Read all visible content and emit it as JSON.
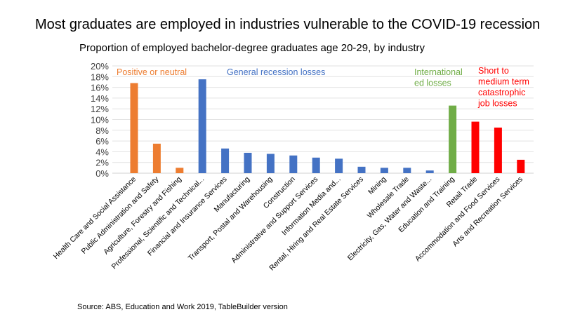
{
  "chart_data": {
    "type": "bar",
    "title": "Most graduates are employed in industries vulnerable to the COVID-19 recession",
    "subtitle": "Proportion of employed bachelor-degree graduates age 20-29, by industry",
    "source": "Source: ABS, Education and Work 2019, TableBuilder version",
    "xlabel": "",
    "ylabel": "",
    "ylim": [
      0,
      20
    ],
    "yticks": [
      "0%",
      "2%",
      "4%",
      "6%",
      "8%",
      "10%",
      "12%",
      "14%",
      "16%",
      "18%",
      "20%"
    ],
    "grid": true,
    "categories": [
      "Health Care and Social Assistance",
      "Public Administration and Safety",
      "Agriculture, Forestry and Fishing",
      "Professional, Scientific and Technical...",
      "Financial and Insurance Services",
      "Manufacturing",
      "Transport, Postal and Warehousing",
      "Construction",
      "Administrative and Support Services",
      "Information Media and...",
      "Rental, Hiring and Real Estate Services",
      "Mining",
      "Wholesale Trade",
      "Electricity, Gas, Water and Waste...",
      "Education and Training",
      "Retail Trade",
      "Accommodation and Food Services",
      "Arts and Recreation Services"
    ],
    "values": [
      16.8,
      5.5,
      1.0,
      17.5,
      4.6,
      3.8,
      3.6,
      3.3,
      2.9,
      2.7,
      1.2,
      1.0,
      1.0,
      0.5,
      12.6,
      9.6,
      8.5,
      2.5
    ],
    "groups": [
      0,
      0,
      0,
      1,
      1,
      1,
      1,
      1,
      1,
      1,
      1,
      1,
      1,
      1,
      2,
      3,
      3,
      3
    ],
    "group_labels": [
      {
        "lines": [
          "Positive or neutral"
        ],
        "color": "#ED7D31"
      },
      {
        "lines": [
          "General recession losses"
        ],
        "color": "#4472C4"
      },
      {
        "lines": [
          "International",
          " ed losses"
        ],
        "color": "#70AD47"
      },
      {
        "lines": [
          "Short to",
          "medium term",
          "catastrophic",
          "job losses"
        ],
        "color": "#FF0000"
      }
    ]
  }
}
